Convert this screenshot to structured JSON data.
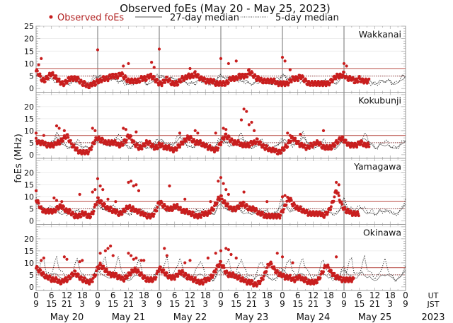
{
  "chart_data": {
    "type": "scatter",
    "title": "Observed foEs (May 20 - May 25, 2023)",
    "ylabel": "foEs (MHz)",
    "xlabel": "",
    "legend": {
      "placement": "top",
      "entries": [
        {
          "label": "Observed foEs",
          "style": "red-dot"
        },
        {
          "label": "27-day median",
          "style": "solid-line"
        },
        {
          "label": "5-day median",
          "style": "dotted-line"
        }
      ]
    },
    "x_range_hours_ut": [
      0,
      144
    ],
    "x_tick_labels_ut": [
      "0",
      "6",
      "12",
      "18",
      "0",
      "6",
      "12",
      "18",
      "0",
      "6",
      "12",
      "18",
      "0",
      "6",
      "12",
      "18",
      "0",
      "6",
      "12",
      "18",
      "0",
      "6",
      "12",
      "18",
      "0"
    ],
    "x_tick_labels_jst": [
      "9",
      "15",
      "21",
      "3",
      "9",
      "15",
      "21",
      "3",
      "9",
      "15",
      "21",
      "3",
      "9",
      "15",
      "21",
      "3",
      "9",
      "15",
      "21",
      "3",
      "9",
      "15",
      "21",
      "3",
      "9"
    ],
    "x_axis_row_labels": {
      "ut": "UT",
      "jst": "JST"
    },
    "day_labels": [
      "May 20",
      "May 21",
      "May 22",
      "May 23",
      "May 24",
      "May 25"
    ],
    "year_label": "2023",
    "colors": {
      "observed": "#c81e1e",
      "median27": "#444444",
      "median5": "#111111",
      "ref_red": "#c0605a",
      "divider": "#888888"
    },
    "panels": [
      {
        "station": "Wakkanai",
        "ylim": [
          -1.5,
          25
        ],
        "y_tick_labels": [
          "0",
          "5",
          "10",
          "15",
          "20",
          "25"
        ],
        "ref_line_high": 8,
        "ref_line_low": 5,
        "observed_hourly": [
          7,
          6,
          4,
          3,
          4,
          5,
          6,
          5,
          4,
          3,
          2,
          2,
          3,
          4,
          4,
          4,
          4,
          3,
          2,
          2,
          1,
          1,
          2,
          2,
          3,
          3,
          4,
          4,
          4,
          5,
          5,
          5,
          5,
          6,
          5,
          4,
          3,
          3,
          3,
          3,
          3,
          4,
          4,
          4,
          5,
          5,
          4,
          3,
          2,
          2,
          3,
          4,
          3,
          2,
          2,
          2,
          3,
          4,
          4,
          5,
          5,
          5,
          6,
          5,
          4,
          4,
          3,
          3,
          3,
          3,
          2,
          2,
          2,
          2,
          2,
          3,
          4,
          4,
          4,
          5,
          5,
          5,
          5,
          7,
          6,
          5,
          4,
          4,
          3,
          3,
          3,
          3,
          3,
          3,
          2,
          2,
          2,
          2,
          2,
          3,
          4,
          4,
          4,
          5,
          4,
          3,
          2,
          2,
          2,
          2,
          2,
          2,
          2,
          2,
          2,
          3,
          4,
          5,
          5,
          5,
          6,
          4,
          4,
          4,
          3,
          3,
          4,
          3,
          3,
          3,
          null,
          null,
          null,
          null,
          null,
          null,
          null,
          null,
          null,
          null,
          null,
          null,
          null,
          null
        ],
        "observed_outliers": [
          [
            2,
            12
          ],
          [
            1,
            9.5
          ],
          [
            24,
            15.5
          ],
          [
            34,
            9
          ],
          [
            36,
            10
          ],
          [
            45,
            10.5
          ],
          [
            46,
            8.5
          ],
          [
            48,
            15.8
          ],
          [
            60,
            8
          ],
          [
            72,
            12
          ],
          [
            75,
            10
          ],
          [
            78,
            11
          ],
          [
            96,
            12.5
          ],
          [
            97,
            11
          ],
          [
            99,
            7.5
          ],
          [
            120,
            10
          ],
          [
            121,
            9
          ]
        ],
        "median27_hourly": [
          5,
          5,
          4,
          4,
          4,
          4,
          4,
          4,
          3,
          3,
          3,
          2,
          2,
          2,
          3,
          3,
          3,
          3,
          3,
          2,
          2,
          2,
          3,
          4
        ],
        "median5_hourly": [
          5,
          5,
          4,
          4,
          4,
          4,
          4,
          3,
          3,
          3,
          2,
          2,
          2,
          2,
          2,
          3,
          3,
          3,
          3,
          2,
          2,
          3,
          4,
          5
        ]
      },
      {
        "station": "Kokubunji",
        "ylim": [
          -1.5,
          26
        ],
        "y_tick_labels": [
          "0",
          "5",
          "10",
          "15",
          "20"
        ],
        "ref_line_high": 8,
        "ref_line_low": 5,
        "observed_hourly": [
          6,
          5,
          5,
          5,
          4,
          4,
          4,
          4,
          5,
          5,
          6,
          7,
          8,
          6,
          4,
          3,
          2,
          1,
          1,
          1,
          1,
          2,
          4,
          6,
          7,
          6,
          6,
          5,
          5,
          5,
          5,
          5,
          4,
          4,
          5,
          6,
          8,
          7,
          5,
          4,
          3,
          3,
          4,
          5,
          5,
          4,
          3,
          3,
          4,
          4,
          3,
          3,
          3,
          2,
          2,
          3,
          4,
          5,
          6,
          7,
          7,
          6,
          5,
          5,
          5,
          4,
          4,
          3,
          3,
          2,
          2,
          3,
          5,
          7,
          8,
          7,
          6,
          5,
          5,
          5,
          4,
          4,
          4,
          4,
          5,
          5,
          6,
          5,
          4,
          3,
          3,
          2,
          2,
          2,
          1,
          1,
          2,
          3,
          4,
          6,
          7,
          6,
          5,
          4,
          4,
          3,
          3,
          4,
          4,
          5,
          5,
          4,
          3,
          3,
          3,
          3,
          4,
          5,
          6,
          7,
          6,
          5,
          4,
          4,
          4,
          4,
          5,
          5,
          4,
          4,
          null,
          null,
          null,
          null,
          null,
          null,
          null,
          null,
          null,
          null,
          null,
          null,
          null,
          null
        ],
        "observed_outliers": [
          [
            0,
            9
          ],
          [
            3,
            8
          ],
          [
            8,
            12
          ],
          [
            9,
            11
          ],
          [
            11,
            10
          ],
          [
            22,
            11
          ],
          [
            23,
            10
          ],
          [
            34,
            11
          ],
          [
            35,
            10.5
          ],
          [
            39,
            9.5
          ],
          [
            56,
            9
          ],
          [
            62,
            10
          ],
          [
            63,
            9
          ],
          [
            70,
            9
          ],
          [
            73,
            11
          ],
          [
            74,
            10.5
          ],
          [
            80,
            14.5
          ],
          [
            81,
            19
          ],
          [
            82,
            18
          ],
          [
            83,
            12.5
          ],
          [
            84,
            13.5
          ],
          [
            85,
            10
          ],
          [
            98,
            9
          ],
          [
            99,
            8
          ],
          [
            103,
            8.5
          ],
          [
            112,
            10
          ]
        ],
        "median27_hourly": [
          6,
          6,
          5,
          5,
          4,
          4,
          5,
          6,
          7,
          6,
          5,
          4,
          3,
          3,
          4,
          4,
          4,
          4,
          3,
          3,
          3,
          3,
          4,
          5
        ],
        "median5_hourly": [
          6,
          5,
          5,
          4,
          4,
          4,
          5,
          7,
          9,
          7,
          5,
          4,
          3,
          3,
          4,
          5,
          6,
          5,
          4,
          3,
          3,
          3,
          4,
          6
        ]
      },
      {
        "station": "Yamagawa",
        "ylim": [
          -1.5,
          26
        ],
        "y_tick_labels": [
          "0",
          "5",
          "10",
          "15",
          "20"
        ],
        "ref_line_high": 8,
        "ref_line_low": 5,
        "observed_hourly": [
          9,
          7,
          5,
          4,
          4,
          4,
          4,
          4,
          5,
          6,
          6,
          5,
          4,
          4,
          3,
          2,
          2,
          2,
          3,
          3,
          2,
          2,
          3,
          6,
          9,
          8,
          7,
          6,
          5,
          5,
          4,
          4,
          3,
          3,
          4,
          5,
          6,
          5,
          5,
          4,
          4,
          3,
          3,
          2,
          2,
          2,
          3,
          5,
          8,
          7,
          6,
          5,
          5,
          5,
          6,
          6,
          5,
          4,
          4,
          4,
          3,
          3,
          2,
          2,
          2,
          3,
          3,
          3,
          4,
          5,
          7,
          9,
          10,
          8,
          7,
          6,
          5,
          5,
          5,
          6,
          7,
          7,
          6,
          5,
          5,
          5,
          4,
          3,
          3,
          2,
          2,
          2,
          2,
          2,
          2,
          2,
          4,
          6,
          9,
          9,
          7,
          6,
          5,
          5,
          4,
          4,
          3,
          3,
          3,
          3,
          3,
          3,
          2,
          3,
          4,
          6,
          9,
          13,
          10,
          7,
          5,
          4,
          4,
          3,
          3,
          3,
          null,
          null,
          null,
          null,
          null,
          null,
          null,
          null,
          null,
          null,
          null,
          null,
          null,
          null,
          null,
          null,
          null,
          null
        ],
        "observed_outliers": [
          [
            0,
            12.5
          ],
          [
            7,
            9.5
          ],
          [
            8,
            8.5
          ],
          [
            10,
            8
          ],
          [
            17,
            11
          ],
          [
            22,
            12
          ],
          [
            23,
            13
          ],
          [
            24,
            17.5
          ],
          [
            25,
            14.5
          ],
          [
            26,
            13
          ],
          [
            28,
            9
          ],
          [
            31,
            8
          ],
          [
            36,
            16
          ],
          [
            37,
            16.5
          ],
          [
            38,
            14.5
          ],
          [
            39,
            15
          ],
          [
            40,
            12.5
          ],
          [
            52,
            14.5
          ],
          [
            58,
            9
          ],
          [
            68,
            8
          ],
          [
            71,
            16.5
          ],
          [
            72,
            18
          ],
          [
            73,
            15.5
          ],
          [
            74,
            13
          ],
          [
            75,
            11
          ],
          [
            81,
            12
          ],
          [
            90,
            8
          ],
          [
            96,
            10
          ],
          [
            97,
            10.5
          ],
          [
            117,
            16
          ],
          [
            118,
            15
          ]
        ],
        "median27_hourly": [
          7,
          6,
          5,
          4,
          4,
          4,
          5,
          5,
          4,
          3,
          3,
          3,
          3,
          3,
          4,
          4,
          4,
          4,
          4,
          3,
          3,
          3,
          4,
          6
        ],
        "median5_hourly": [
          9,
          7,
          5,
          5,
          5,
          5,
          6,
          6,
          5,
          4,
          4,
          4,
          3,
          3,
          4,
          4,
          4,
          4,
          4,
          3,
          3,
          3,
          4,
          7
        ]
      },
      {
        "station": "Okinawa",
        "ylim": [
          -1.5,
          26
        ],
        "y_tick_labels": [
          "0",
          "5",
          "10",
          "15",
          "20"
        ],
        "ref_line_high": 8,
        "ref_line_low": 5,
        "observed_hourly": [
          8,
          7,
          6,
          5,
          4,
          4,
          3,
          3,
          3,
          2,
          2,
          3,
          3,
          4,
          5,
          6,
          5,
          4,
          3,
          3,
          2,
          2,
          3,
          5,
          8,
          9,
          8,
          7,
          6,
          5,
          5,
          5,
          4,
          4,
          3,
          4,
          5,
          6,
          7,
          7,
          6,
          5,
          4,
          3,
          3,
          3,
          3,
          5,
          8,
          7,
          6,
          5,
          4,
          4,
          4,
          5,
          6,
          6,
          5,
          4,
          4,
          3,
          3,
          2,
          2,
          2,
          3,
          3,
          4,
          5,
          7,
          9,
          10,
          8,
          6,
          5,
          5,
          5,
          4,
          4,
          3,
          3,
          2,
          2,
          2,
          1,
          1,
          2,
          3,
          5,
          8,
          10,
          9,
          7,
          6,
          5,
          5,
          4,
          4,
          4,
          3,
          3,
          4,
          4,
          3,
          3,
          2,
          2,
          2,
          2,
          3,
          5,
          7,
          9,
          8,
          6,
          5,
          4,
          4,
          3,
          3,
          3,
          3,
          3,
          null,
          null,
          null,
          null,
          null,
          null,
          null,
          null,
          null,
          null,
          null,
          null,
          null,
          null,
          null,
          null,
          null,
          null,
          null,
          null
        ],
        "observed_outliers": [
          [
            2,
            11
          ],
          [
            3,
            12
          ],
          [
            11,
            12.5
          ],
          [
            12,
            11.5
          ],
          [
            17,
            10.5
          ],
          [
            18,
            11
          ],
          [
            25,
            14
          ],
          [
            27,
            15
          ],
          [
            28,
            16
          ],
          [
            29,
            17
          ],
          [
            30,
            13
          ],
          [
            36,
            14
          ],
          [
            37,
            13
          ],
          [
            38,
            11.5
          ],
          [
            39,
            12
          ],
          [
            41,
            11
          ],
          [
            42,
            11
          ],
          [
            50,
            16
          ],
          [
            51,
            13
          ],
          [
            58,
            10
          ],
          [
            60,
            11
          ],
          [
            67,
            12
          ],
          [
            70,
            14
          ],
          [
            72,
            15
          ],
          [
            74,
            16
          ],
          [
            75,
            15.5
          ],
          [
            76,
            13.5
          ],
          [
            78,
            12
          ],
          [
            94,
            14
          ],
          [
            96,
            12.5
          ],
          [
            100,
            10
          ],
          [
            117,
            12.5
          ]
        ],
        "median27_hourly": [
          7,
          6,
          5,
          4,
          4,
          4,
          5,
          6,
          5,
          4,
          4,
          3,
          3,
          3,
          4,
          5,
          5,
          5,
          4,
          4,
          3,
          3,
          4,
          6
        ],
        "median5_hourly": [
          8,
          7,
          10,
          12,
          6,
          5,
          6,
          9,
          12,
          8,
          6,
          5,
          4,
          4,
          6,
          9,
          11,
          8,
          5,
          4,
          3,
          3,
          4,
          7
        ]
      }
    ]
  }
}
